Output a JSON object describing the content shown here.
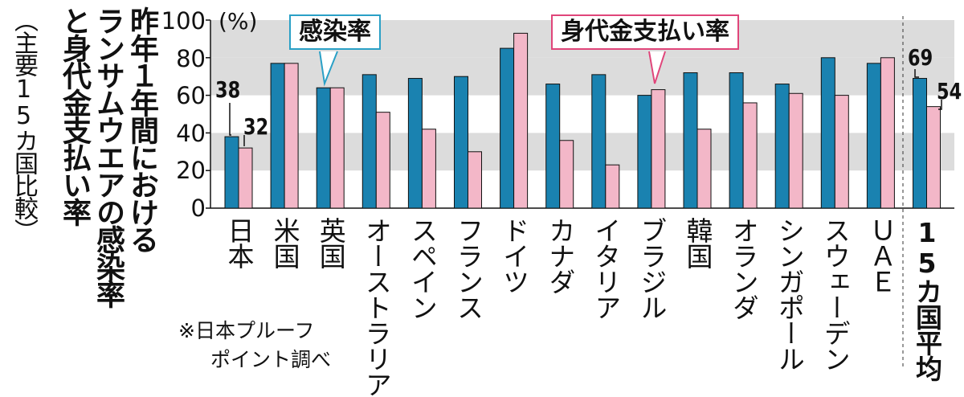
{
  "title_lines": [
    "昨年１年間における",
    "ランサムウエアの感染率",
    "と身代金支払い率"
  ],
  "subtitle": "（主要15カ国比較）",
  "unit": "(%)",
  "note_line1": "※日本プルーフ",
  "note_line2": "ポイント調べ",
  "legend": {
    "infection": "感染率",
    "ransom": "身代金支払い率"
  },
  "colors": {
    "infection": "#1a82b0",
    "ransom": "#f3b7c8",
    "gridband": "#dcdcdc",
    "infection_border": "#2aa0c6",
    "ransom_border": "#e0457a"
  },
  "chart_data": {
    "type": "bar",
    "ylim": [
      0,
      100
    ],
    "yticks": [
      "0",
      "20",
      "40",
      "60",
      "80",
      "100"
    ],
    "categories": [
      "日本",
      "米国",
      "英国",
      "オーストラリア",
      "スペイン",
      "フランス",
      "ドイツ",
      "カナダ",
      "イタリア",
      "ブラジル",
      "韓国",
      "オランダ",
      "シンガポール",
      "スウェーデン",
      "ＵＡＥ",
      "15カ国平均"
    ],
    "series": [
      {
        "name": "感染率",
        "values": [
          38,
          77,
          64,
          71,
          69,
          70,
          85,
          66,
          71,
          60,
          72,
          72,
          66,
          80,
          77,
          69
        ]
      },
      {
        "name": "身代金支払い率",
        "values": [
          32,
          77,
          64,
          51,
          42,
          30,
          93,
          36,
          23,
          63,
          42,
          56,
          61,
          60,
          80,
          54
        ]
      }
    ],
    "data_labels": {
      "japan_infection": "38",
      "japan_ransom": "32",
      "avg_infection": "69",
      "avg_ransom": "54"
    }
  }
}
